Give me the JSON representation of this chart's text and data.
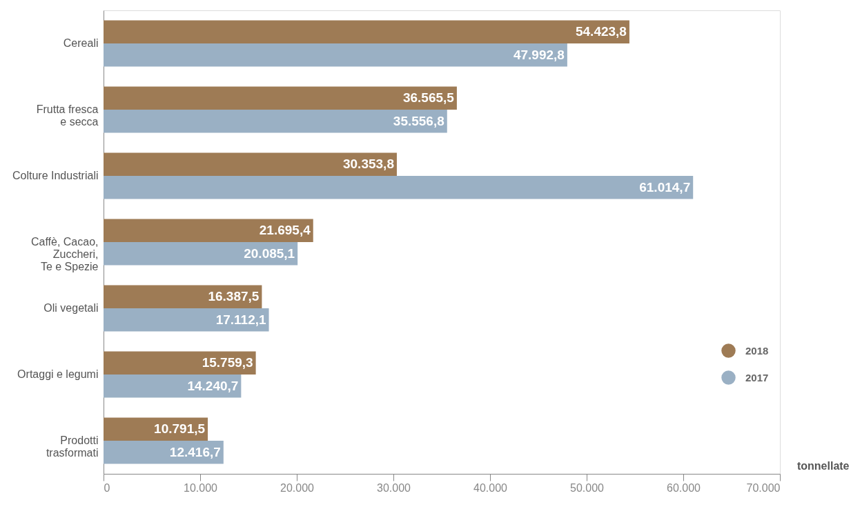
{
  "chart_data": {
    "type": "bar",
    "orientation": "horizontal",
    "categories": [
      "Cereali",
      "Frutta fresca\ne secca",
      "Colture Industriali",
      "Caffè, Cacao,\nZuccheri,\nTe e Spezie",
      "Oli vegetali",
      "Ortaggi e legumi",
      "Prodotti\ntrasformati"
    ],
    "series": [
      {
        "name": "2018",
        "color": "#9e7b55",
        "values": [
          54423.8,
          36565.5,
          30353.8,
          21695.4,
          16387.5,
          15759.3,
          10791.5
        ],
        "value_labels": [
          "54.423,8",
          "36.565,5",
          "30.353,8",
          "21.695,4",
          "16.387,5",
          "15.759,3",
          "10.791,5"
        ]
      },
      {
        "name": "2017",
        "color": "#9ab0c4",
        "values": [
          47992.8,
          35556.8,
          61014.7,
          20085.1,
          17112.1,
          14240.7,
          12416.7
        ],
        "value_labels": [
          "47.992,8",
          "35.556,8",
          "61.014,7",
          "20.085,1",
          "17.112,1",
          "14.240,7",
          "12.416,7"
        ]
      }
    ],
    "xlim": [
      0,
      70000
    ],
    "xticks": [
      {
        "value": 0,
        "label": "0"
      },
      {
        "value": 10000,
        "label": "10.000"
      },
      {
        "value": 20000,
        "label": "20.000"
      },
      {
        "value": 30000,
        "label": "30.000"
      },
      {
        "value": 40000,
        "label": "40.000"
      },
      {
        "value": 50000,
        "label": "50.000"
      },
      {
        "value": 60000,
        "label": "60.000"
      },
      {
        "value": 70000,
        "label": "70.000"
      }
    ],
    "xlabel": "tonnellate",
    "legend": "right"
  }
}
